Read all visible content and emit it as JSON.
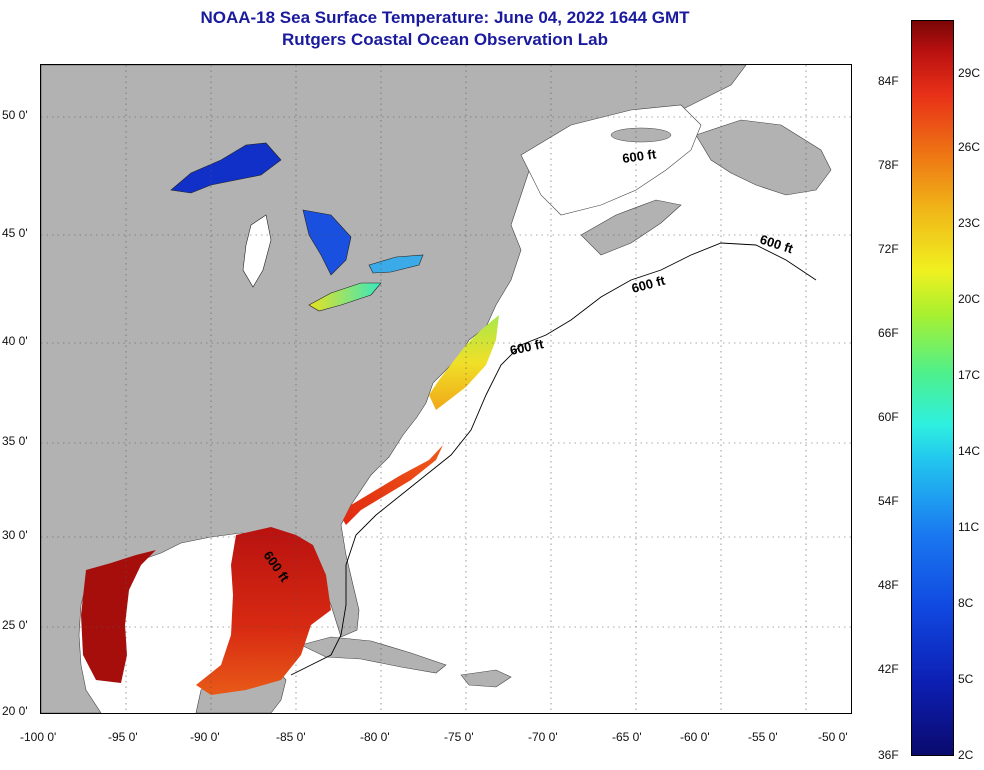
{
  "title": {
    "line1": "NOAA-18 Sea Surface Temperature:  June 04, 2022 1644 GMT",
    "line2": "Rutgers Coastal Ocean Observation Lab"
  },
  "axes": {
    "lat_ticks": [
      "50 0'",
      "45 0'",
      "40 0'",
      "35 0'",
      "30 0'",
      "25 0'",
      "20 0'"
    ],
    "lon_ticks": [
      "-100 0'",
      "-95 0'",
      "-90 0'",
      "-85 0'",
      "-80 0'",
      "-75 0'",
      "-70 0'",
      "-65 0'",
      "-60 0'",
      "-55 0'",
      "-50 0'"
    ]
  },
  "contour_labels": [
    "600 ft",
    "600 ft",
    "600 ft",
    "600 ft",
    "600 ft"
  ],
  "colorbar": {
    "fahrenheit": [
      "84F",
      "78F",
      "72F",
      "66F",
      "60F",
      "54F",
      "48F",
      "42F",
      "36F"
    ],
    "celsius": [
      "29C",
      "26C",
      "23C",
      "20C",
      "17C",
      "14C",
      "11C",
      "8C",
      "5C",
      "2C"
    ]
  },
  "colors": {
    "land": "#b2b2b2",
    "ocean": "#ffffff",
    "title": "#1a1a9e",
    "great_lakes_cold": "#1030c8",
    "gulf_warm": "#c81a0c",
    "gulf_hot": "#8a0a08"
  }
}
